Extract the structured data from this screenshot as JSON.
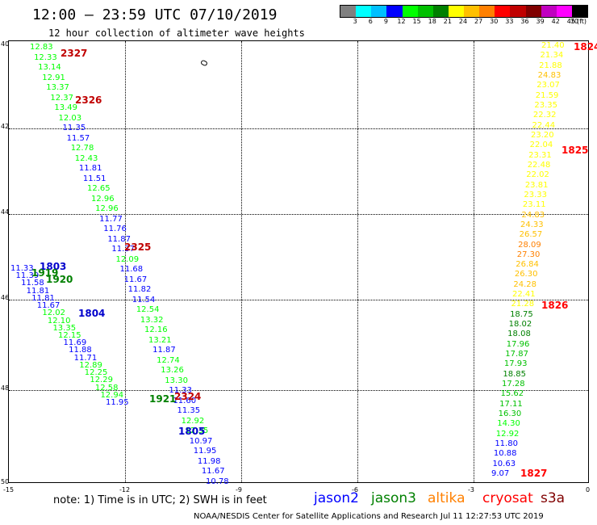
{
  "title": "12:00 – 23:59 UTC 07/10/2019",
  "subtitle": "12 hour collection of altimeter wave heights",
  "legend": {
    "unit": "(ft)",
    "labels": [
      "3",
      "6",
      "9",
      "12",
      "15",
      "18",
      "21",
      "24",
      "27",
      "30",
      "33",
      "36",
      "39",
      "42",
      "45",
      "70"
    ],
    "colors": [
      "#808080",
      "#00ffff",
      "#00c0ff",
      "#0000ff",
      "#00ff00",
      "#00c000",
      "#008000",
      "#ffff00",
      "#ffc000",
      "#ff8000",
      "#ff0000",
      "#c00000",
      "#800000",
      "#c000c0",
      "#ff00ff",
      "#000000"
    ]
  },
  "axes": {
    "x_ticks": [
      "-15",
      "-12",
      "-9",
      "-6",
      "-3",
      "0"
    ],
    "y_ticks": [
      "40",
      "42",
      "44",
      "46",
      "48",
      "50"
    ]
  },
  "passes": [
    {
      "label": "2327",
      "color": "#c00000"
    },
    {
      "label": "2326",
      "color": "#c00000"
    },
    {
      "label": "2325",
      "color": "#c00000"
    },
    {
      "label": "2324",
      "color": "#c00000"
    },
    {
      "label": "1803",
      "color": "#0000cc"
    },
    {
      "label": "1919",
      "color": "#008000"
    },
    {
      "label": "1920",
      "color": "#008000"
    },
    {
      "label": "1804",
      "color": "#0000cc"
    },
    {
      "label": "1921",
      "color": "#008000"
    },
    {
      "label": "1805",
      "color": "#0000cc"
    },
    {
      "label": "1824",
      "color": "#ff0000"
    },
    {
      "label": "1825",
      "color": "#ff0000"
    },
    {
      "label": "1826",
      "color": "#ff0000"
    },
    {
      "label": "1827",
      "color": "#ff0000"
    }
  ],
  "track_west": [
    "12.83",
    "12.33",
    "13.14",
    "12.91",
    "13.37",
    "12.37",
    "13.49",
    "12.03",
    "11.35",
    "11.57",
    "12.78",
    "12.43",
    "11.81",
    "11.51",
    "12.65",
    "12.96",
    "12.96",
    "11.77",
    "11.76",
    "11.87",
    "11.37",
    "12.09",
    "11.68",
    "11.67",
    "11.82",
    "11.54",
    "12.54",
    "13.32",
    "12.16",
    "13.21",
    "11.87",
    "12.74",
    "13.26",
    "13.30",
    "11.33",
    "11.60",
    "11.35",
    "12.92",
    "12.35",
    "10.97",
    "11.95",
    "11.98",
    "11.67",
    "10.78"
  ],
  "track_west_b": [
    "11.33",
    "11.39",
    "11.58",
    "11.81",
    "11.81",
    "11.67",
    "12.02",
    "12.10",
    "13.35",
    "12.15",
    "11.69",
    "11.88",
    "11.71",
    "12.89",
    "12.25",
    "12.29",
    "12.58",
    "12.94",
    "11.95"
  ],
  "track_east": [
    "21.40",
    "21.34",
    "21.88",
    "24.83",
    "23.07",
    "21.59",
    "23.35",
    "22.32",
    "22.44",
    "23.20",
    "22.04",
    "23.31",
    "22.48",
    "22.02",
    "23.81",
    "23.33",
    "23.11",
    "24.83",
    "24.33",
    "26.57",
    "28.09",
    "27.30",
    "26.84",
    "26.30",
    "24.28",
    "22.41",
    "21.28",
    "18.75",
    "18.02",
    "18.08",
    "17.96",
    "17.87",
    "17.93",
    "18.85",
    "17.28",
    "15.62",
    "17.11",
    "16.30",
    "14.30",
    "12.92",
    "11.80",
    "10.88",
    "10.63",
    "9.07"
  ],
  "note": "note: 1) Time is in UTC; 2) SWH is in feet",
  "satellites": [
    {
      "label": "jason2",
      "color": "#0000ff"
    },
    {
      "label": "jason3",
      "color": "#008000"
    },
    {
      "label": "altika",
      "color": "#ff8000"
    },
    {
      "label": "cryosat",
      "color": "#ff0000"
    },
    {
      "label": "s3a",
      "color": "#800000"
    }
  ],
  "credit": "NOAA/NESDIS Center for Satellite Applications and Research     Jul 11 12:27:53 UTC 2019"
}
